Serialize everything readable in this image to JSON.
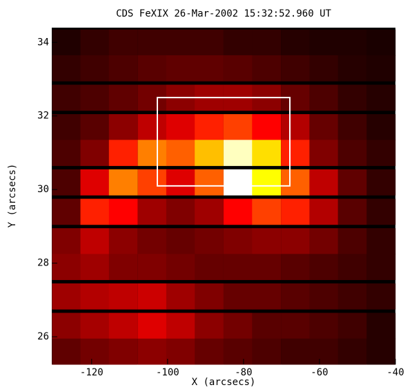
{
  "chart_data": {
    "type": "heatmap",
    "title": "CDS FeXIX 26-Mar-2002 15:32:52.960 UT",
    "xlabel": "X (arcsecs)",
    "ylabel": "Y (arcsecs)",
    "xlim": [
      -130.5,
      -40
    ],
    "ylim": [
      25.25,
      34.4
    ],
    "xticks": [
      -120,
      -100,
      -80,
      -60,
      -40
    ],
    "yticks": [
      26,
      28,
      30,
      32,
      34
    ],
    "x": [
      -126.7,
      -119.2,
      -111.7,
      -104.1,
      -96.6,
      -89.1,
      -81.5,
      -74.0,
      -66.4,
      -58.9,
      -51.4,
      -43.8
    ],
    "y": [
      34.0,
      33.3,
      32.5,
      31.7,
      31.0,
      30.2,
      29.4,
      28.6,
      27.9,
      27.1,
      26.3,
      25.6
    ],
    "zlim": [
      0,
      100
    ],
    "z": [
      [
        5,
        8,
        10,
        10,
        10,
        10,
        8,
        8,
        6,
        5,
        5,
        4
      ],
      [
        8,
        10,
        12,
        14,
        15,
        15,
        14,
        12,
        10,
        8,
        6,
        5
      ],
      [
        10,
        12,
        15,
        18,
        22,
        25,
        25,
        22,
        16,
        12,
        8,
        6
      ],
      [
        10,
        14,
        22,
        30,
        35,
        45,
        50,
        40,
        28,
        16,
        10,
        6
      ],
      [
        12,
        20,
        45,
        60,
        55,
        70,
        95,
        75,
        45,
        20,
        12,
        8
      ],
      [
        12,
        35,
        60,
        50,
        35,
        55,
        100,
        80,
        55,
        30,
        15,
        8
      ],
      [
        15,
        45,
        40,
        25,
        20,
        25,
        40,
        50,
        45,
        28,
        14,
        8
      ],
      [
        20,
        30,
        22,
        18,
        16,
        18,
        20,
        22,
        22,
        18,
        12,
        8
      ],
      [
        22,
        25,
        20,
        20,
        18,
        16,
        16,
        16,
        14,
        12,
        10,
        8
      ],
      [
        25,
        28,
        30,
        32,
        25,
        20,
        16,
        16,
        14,
        12,
        10,
        8
      ],
      [
        22,
        26,
        30,
        35,
        30,
        22,
        18,
        14,
        14,
        12,
        10,
        6
      ],
      [
        15,
        18,
        20,
        22,
        20,
        16,
        14,
        12,
        10,
        10,
        8,
        6
      ]
    ],
    "box": {
      "x": [
        -102.7,
        -67.8
      ],
      "y": [
        30.1,
        32.5
      ],
      "color": "#ffffff"
    }
  }
}
